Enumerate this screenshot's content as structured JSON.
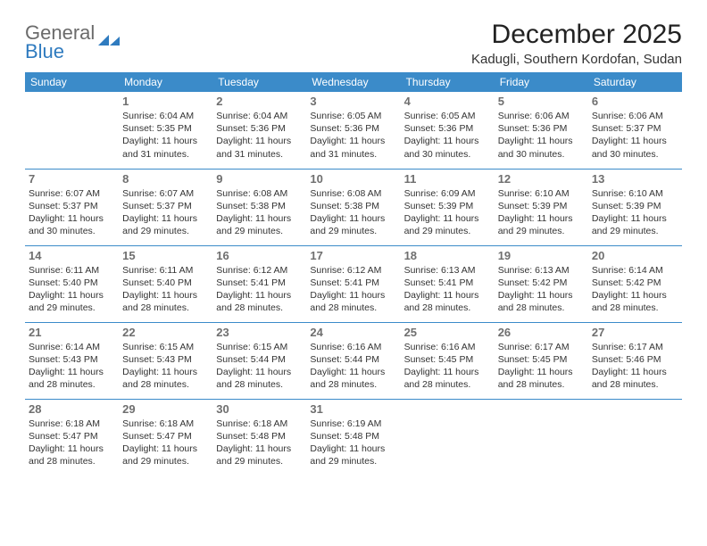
{
  "brand": {
    "line1": "General",
    "line2": "Blue",
    "logo_color": "#2f7bbf",
    "gray": "#6b6b6b"
  },
  "title": "December 2025",
  "location": "Kadugli, Southern Kordofan, Sudan",
  "header_bg": "#3b8bc9",
  "header_fg": "#ffffff",
  "rule_color": "#3b8bc9",
  "day_headers": [
    "Sunday",
    "Monday",
    "Tuesday",
    "Wednesday",
    "Thursday",
    "Friday",
    "Saturday"
  ],
  "weeks": [
    [
      null,
      {
        "n": "1",
        "sunrise": "6:04 AM",
        "sunset": "5:35 PM",
        "daylight": "11 hours and 31 minutes."
      },
      {
        "n": "2",
        "sunrise": "6:04 AM",
        "sunset": "5:36 PM",
        "daylight": "11 hours and 31 minutes."
      },
      {
        "n": "3",
        "sunrise": "6:05 AM",
        "sunset": "5:36 PM",
        "daylight": "11 hours and 31 minutes."
      },
      {
        "n": "4",
        "sunrise": "6:05 AM",
        "sunset": "5:36 PM",
        "daylight": "11 hours and 30 minutes."
      },
      {
        "n": "5",
        "sunrise": "6:06 AM",
        "sunset": "5:36 PM",
        "daylight": "11 hours and 30 minutes."
      },
      {
        "n": "6",
        "sunrise": "6:06 AM",
        "sunset": "5:37 PM",
        "daylight": "11 hours and 30 minutes."
      }
    ],
    [
      {
        "n": "7",
        "sunrise": "6:07 AM",
        "sunset": "5:37 PM",
        "daylight": "11 hours and 30 minutes."
      },
      {
        "n": "8",
        "sunrise": "6:07 AM",
        "sunset": "5:37 PM",
        "daylight": "11 hours and 29 minutes."
      },
      {
        "n": "9",
        "sunrise": "6:08 AM",
        "sunset": "5:38 PM",
        "daylight": "11 hours and 29 minutes."
      },
      {
        "n": "10",
        "sunrise": "6:08 AM",
        "sunset": "5:38 PM",
        "daylight": "11 hours and 29 minutes."
      },
      {
        "n": "11",
        "sunrise": "6:09 AM",
        "sunset": "5:39 PM",
        "daylight": "11 hours and 29 minutes."
      },
      {
        "n": "12",
        "sunrise": "6:10 AM",
        "sunset": "5:39 PM",
        "daylight": "11 hours and 29 minutes."
      },
      {
        "n": "13",
        "sunrise": "6:10 AM",
        "sunset": "5:39 PM",
        "daylight": "11 hours and 29 minutes."
      }
    ],
    [
      {
        "n": "14",
        "sunrise": "6:11 AM",
        "sunset": "5:40 PM",
        "daylight": "11 hours and 29 minutes."
      },
      {
        "n": "15",
        "sunrise": "6:11 AM",
        "sunset": "5:40 PM",
        "daylight": "11 hours and 28 minutes."
      },
      {
        "n": "16",
        "sunrise": "6:12 AM",
        "sunset": "5:41 PM",
        "daylight": "11 hours and 28 minutes."
      },
      {
        "n": "17",
        "sunrise": "6:12 AM",
        "sunset": "5:41 PM",
        "daylight": "11 hours and 28 minutes."
      },
      {
        "n": "18",
        "sunrise": "6:13 AM",
        "sunset": "5:41 PM",
        "daylight": "11 hours and 28 minutes."
      },
      {
        "n": "19",
        "sunrise": "6:13 AM",
        "sunset": "5:42 PM",
        "daylight": "11 hours and 28 minutes."
      },
      {
        "n": "20",
        "sunrise": "6:14 AM",
        "sunset": "5:42 PM",
        "daylight": "11 hours and 28 minutes."
      }
    ],
    [
      {
        "n": "21",
        "sunrise": "6:14 AM",
        "sunset": "5:43 PM",
        "daylight": "11 hours and 28 minutes."
      },
      {
        "n": "22",
        "sunrise": "6:15 AM",
        "sunset": "5:43 PM",
        "daylight": "11 hours and 28 minutes."
      },
      {
        "n": "23",
        "sunrise": "6:15 AM",
        "sunset": "5:44 PM",
        "daylight": "11 hours and 28 minutes."
      },
      {
        "n": "24",
        "sunrise": "6:16 AM",
        "sunset": "5:44 PM",
        "daylight": "11 hours and 28 minutes."
      },
      {
        "n": "25",
        "sunrise": "6:16 AM",
        "sunset": "5:45 PM",
        "daylight": "11 hours and 28 minutes."
      },
      {
        "n": "26",
        "sunrise": "6:17 AM",
        "sunset": "5:45 PM",
        "daylight": "11 hours and 28 minutes."
      },
      {
        "n": "27",
        "sunrise": "6:17 AM",
        "sunset": "5:46 PM",
        "daylight": "11 hours and 28 minutes."
      }
    ],
    [
      {
        "n": "28",
        "sunrise": "6:18 AM",
        "sunset": "5:47 PM",
        "daylight": "11 hours and 28 minutes."
      },
      {
        "n": "29",
        "sunrise": "6:18 AM",
        "sunset": "5:47 PM",
        "daylight": "11 hours and 29 minutes."
      },
      {
        "n": "30",
        "sunrise": "6:18 AM",
        "sunset": "5:48 PM",
        "daylight": "11 hours and 29 minutes."
      },
      {
        "n": "31",
        "sunrise": "6:19 AM",
        "sunset": "5:48 PM",
        "daylight": "11 hours and 29 minutes."
      },
      null,
      null,
      null
    ]
  ],
  "labels": {
    "sunrise": "Sunrise: ",
    "sunset": "Sunset: ",
    "daylight": "Daylight: "
  }
}
